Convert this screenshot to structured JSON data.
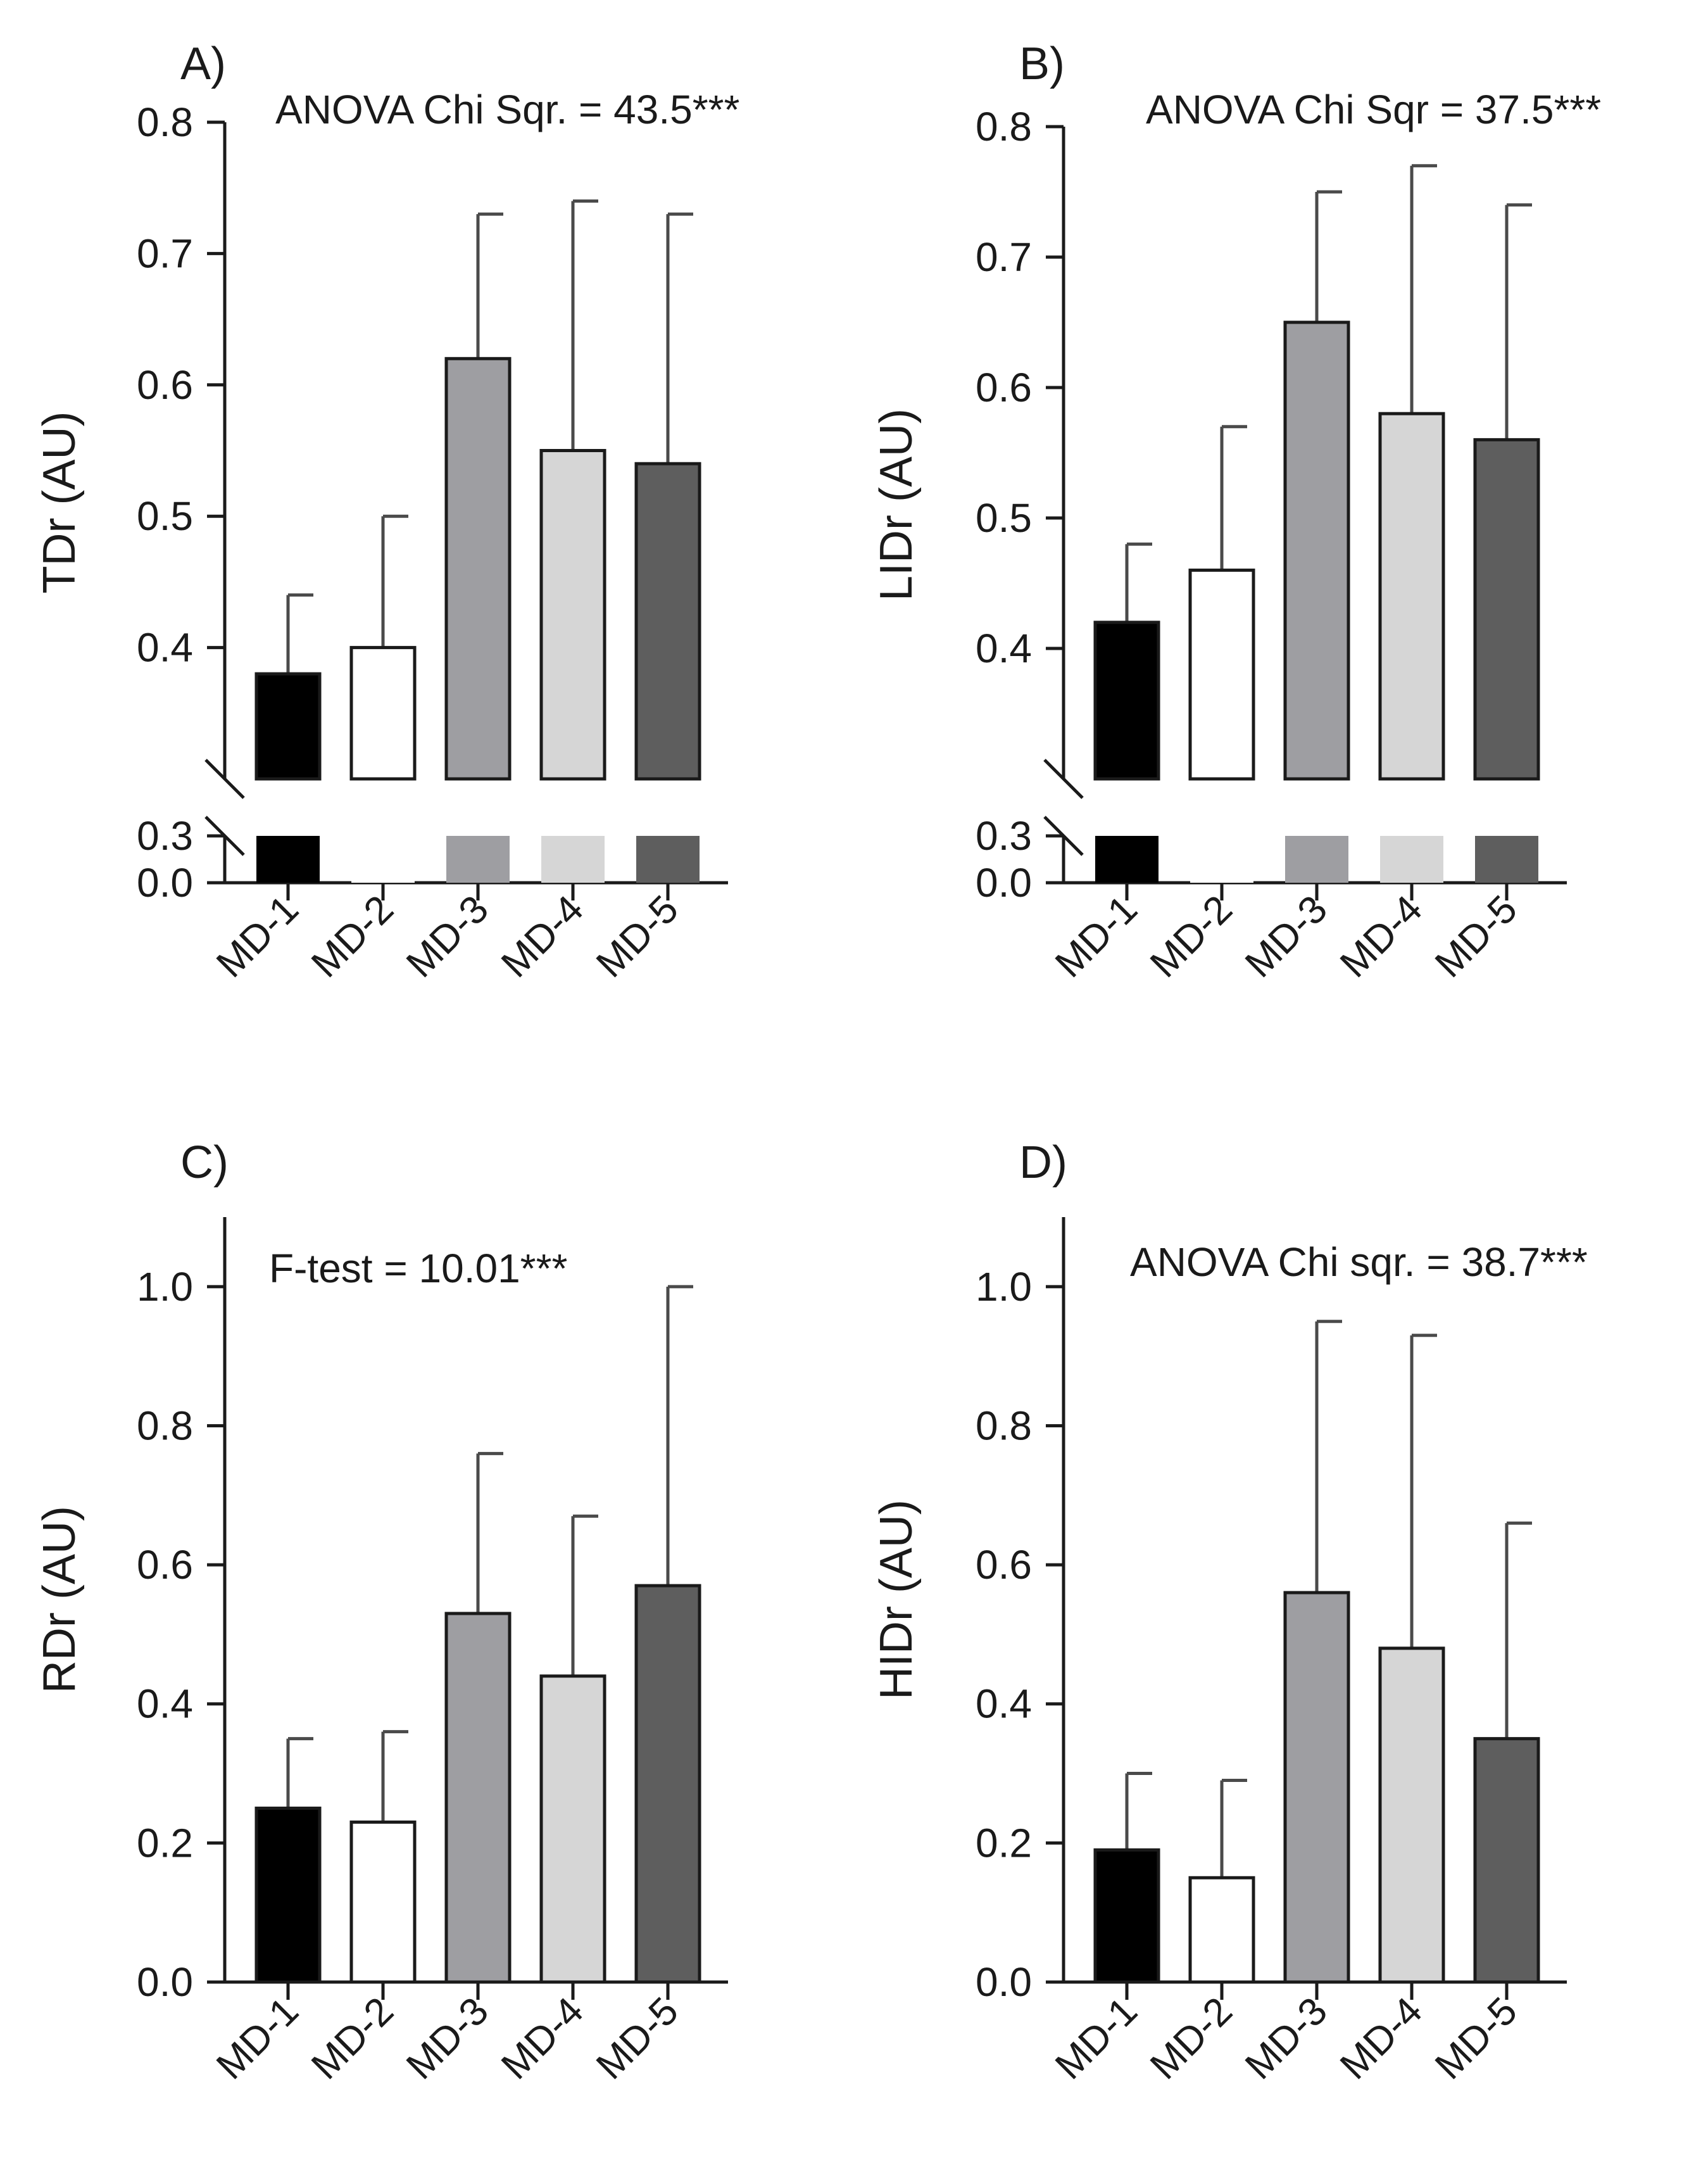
{
  "colors": {
    "MD-1": "#000000",
    "MD-2": "#ffffff",
    "MD-3": "#9e9ea2",
    "MD-4": "#d6d6d6",
    "MD-5": "#5e5e5e",
    "axis": "#1a1a1a",
    "error_bar": "#4a4a4a"
  },
  "chart_data": [
    {
      "type": "bar",
      "panel": "A)",
      "title": "ANOVA Chi Sqr. = 43.5***",
      "ylabel": "TDr (AU)",
      "xlabel": "",
      "categories": [
        "MD-1",
        "MD-2",
        "MD-3",
        "MD-4",
        "MD-5"
      ],
      "values": [
        0.38,
        0.4,
        0.62,
        0.55,
        0.54
      ],
      "error_upper": [
        0.44,
        0.5,
        0.73,
        0.74,
        0.73
      ],
      "axis_break": true,
      "ylim": [
        0,
        0.8
      ],
      "lower_segment": [
        0,
        0.3
      ],
      "upper_segment": [
        0.3,
        0.8
      ],
      "yticks": [
        0.0,
        0.3,
        0.4,
        0.5,
        0.6,
        0.7,
        0.8
      ],
      "ytick_labels": [
        "0.0",
        "0.3",
        "0.4",
        "0.5",
        "0.6",
        "0.7",
        "0.8"
      ]
    },
    {
      "type": "bar",
      "panel": "B)",
      "title": "ANOVA Chi Sqr  = 37.5***",
      "ylabel": "LIDr (AU)",
      "xlabel": "",
      "categories": [
        "MD-1",
        "MD-2",
        "MD-3",
        "MD-4",
        "MD-5"
      ],
      "values": [
        0.42,
        0.46,
        0.65,
        0.58,
        0.56
      ],
      "error_upper": [
        0.48,
        0.57,
        0.75,
        0.77,
        0.74
      ],
      "axis_break": true,
      "ylim": [
        0,
        0.8
      ],
      "lower_segment": [
        0,
        0.3
      ],
      "upper_segment": [
        0.3,
        0.8
      ],
      "yticks": [
        0.0,
        0.3,
        0.4,
        0.5,
        0.6,
        0.7,
        0.8
      ],
      "ytick_labels": [
        "0.0",
        "0.3",
        "0.4",
        "0.5",
        "0.6",
        "0.7",
        "0.8"
      ]
    },
    {
      "type": "bar",
      "panel": "C)",
      "title": "F-test = 10.01***",
      "ylabel": "RDr (AU)",
      "xlabel": "",
      "categories": [
        "MD-1",
        "MD-2",
        "MD-3",
        "MD-4",
        "MD-5"
      ],
      "values": [
        0.25,
        0.23,
        0.53,
        0.44,
        0.57
      ],
      "error_upper": [
        0.35,
        0.36,
        0.76,
        0.67,
        1.0
      ],
      "axis_break": false,
      "ylim": [
        0,
        1.1
      ],
      "yticks": [
        0.0,
        0.2,
        0.4,
        0.6,
        0.8,
        1.0
      ],
      "ytick_labels": [
        "0.0",
        "0.2",
        "0.4",
        "0.6",
        "0.8",
        "1.0"
      ]
    },
    {
      "type": "bar",
      "panel": "D)",
      "title": "ANOVA Chi sqr. = 38.7***",
      "ylabel": "HIDr (AU)",
      "xlabel": "",
      "categories": [
        "MD-1",
        "MD-2",
        "MD-3",
        "MD-4",
        "MD-5"
      ],
      "values": [
        0.19,
        0.15,
        0.56,
        0.48,
        0.35
      ],
      "error_upper": [
        0.3,
        0.29,
        0.95,
        0.93,
        0.66
      ],
      "axis_break": false,
      "ylim": [
        0,
        1.1
      ],
      "yticks": [
        0.0,
        0.2,
        0.4,
        0.6,
        0.8,
        1.0
      ],
      "ytick_labels": [
        "0.0",
        "0.2",
        "0.4",
        "0.6",
        "0.8",
        "1.0"
      ]
    }
  ]
}
